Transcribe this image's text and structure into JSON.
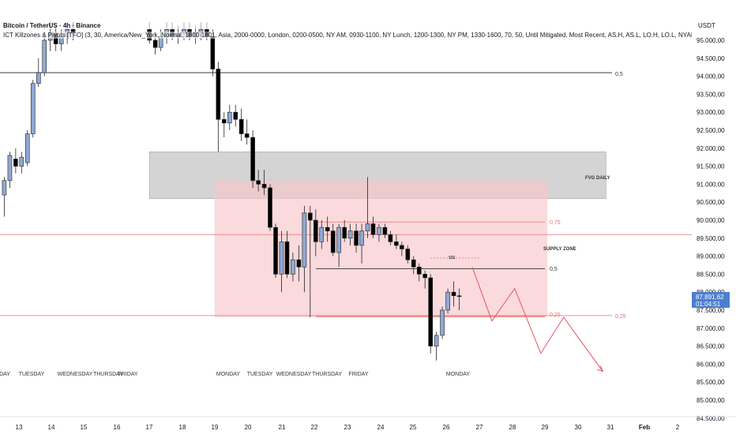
{
  "header": {
    "symbol_title": "Bitcoin / TetherUS · 4h · Binance",
    "indicator_legend": "ICT Killzones & Pivots [TFO] (3, 30, America/New_York, Normal, 1800-1801, Asia, 2000-0000, London, 0200-0500, NY AM, 0930-1100, NY Lunch, 1200-1300, NY PM, 1330-1600, 70, 50, Until Mitigated, Most Recent, AS.H, AS.L, LO.H, LO.L, NYAM.H, NYAM.L, NYL.H, N",
    "indicator_legend_2": "ICT Killzones & Pivots [TFO] (3, 30, America/New_York, Normal, 1800-1801, Asia, 2000-0000, London, 0200-0500, NY AM, 0930-1100, NY Lunch, 1200-1300, NY PM, 1330-1600, 70, 50, Until Mitigated, Most Recent, AS.H, AS.L, LO.H, LO.L, NYAM.H, NYAM.L, NYL.H, N"
  },
  "price_axis": {
    "currency": "USDT",
    "labels": [
      "95.000,00",
      "94.500,00",
      "94.000,00",
      "93.500,00",
      "93.000,00",
      "92.500,00",
      "92.000,00",
      "91.500,00",
      "91.000,00",
      "90.500,00",
      "90.000,00",
      "89.500,00",
      "89.000,00",
      "88.500,00",
      "88.000,00",
      "87.500,00",
      "87.000,00",
      "86.500,00",
      "86.000,00",
      "85.500,00",
      "85.000,00",
      "84.500,00"
    ],
    "current_price": "87.891,62",
    "countdown": "01:04:51"
  },
  "time_axis": {
    "labels": [
      "13",
      "14",
      "15",
      "16",
      "17",
      "18",
      "19",
      "20",
      "21",
      "22",
      "23",
      "24",
      "25",
      "26",
      "27",
      "28",
      "29",
      "30",
      "31",
      "Feb",
      "2"
    ]
  },
  "weekday_labels": [
    "DAY",
    "TUESDAY",
    "WEDNESDAY",
    "THURSDAY",
    "FRIDAY",
    "MONDAY",
    "TUESDAY",
    "WEDNESDAY",
    "THURSDAY",
    "FRIDAY",
    "MONDAY"
  ],
  "annotations": {
    "fvg_label": "FVG DAILY",
    "supply_label": "SUPPLY ZONE",
    "level_top_label": "0,5",
    "fib_075": "0,75",
    "fib_05": "0,5",
    "fib_025": "0,25",
    "fib_025_right": "0,25",
    "dollar_marker": "$$$"
  },
  "colors": {
    "bull": "#8fa9d6",
    "bear": "#000000",
    "fvg": "#b8b8b8",
    "supply": "#f7c6c9",
    "red_line": "#e57373",
    "projection": "#e45565",
    "price_tag": "#4d7fcf"
  },
  "chart_data": {
    "type": "candlestick",
    "title": "Bitcoin / TetherUS · 4h · Binance",
    "x_unit": "date (January, 4h candles)",
    "y_unit": "USDT",
    "ylim": [
      84500,
      95500
    ],
    "grid": false,
    "candles": [
      {
        "d": 12.55,
        "o": 90700,
        "h": 91200,
        "l": 90100,
        "c": 91100
      },
      {
        "d": 12.72,
        "o": 91100,
        "h": 91900,
        "l": 90900,
        "c": 91800
      },
      {
        "d": 12.9,
        "o": 91700,
        "h": 92000,
        "l": 91300,
        "c": 91500
      },
      {
        "d": 13.08,
        "o": 91500,
        "h": 91900,
        "l": 91300,
        "c": 91750
      },
      {
        "d": 13.26,
        "o": 91600,
        "h": 92500,
        "l": 91500,
        "c": 92400
      },
      {
        "d": 13.43,
        "o": 92400,
        "h": 93900,
        "l": 92300,
        "c": 93800
      },
      {
        "d": 13.6,
        "o": 93800,
        "h": 94500,
        "l": 93700,
        "c": 94100
      },
      {
        "d": 13.78,
        "o": 94100,
        "h": 95200,
        "l": 94000,
        "c": 95000
      },
      {
        "d": 13.96,
        "o": 95000,
        "h": 95500,
        "l": 94700,
        "c": 95200
      },
      {
        "d": 14.13,
        "o": 95200,
        "h": 95400,
        "l": 94700,
        "c": 94900
      },
      {
        "d": 14.3,
        "o": 94900,
        "h": 95300,
        "l": 94700,
        "c": 95100
      },
      {
        "d": 14.48,
        "o": 95100,
        "h": 95500,
        "l": 94900,
        "c": 95300
      },
      {
        "d": 14.66,
        "o": 95300,
        "h": 95500,
        "l": 95000,
        "c": 95200
      },
      {
        "d": 17.0,
        "o": 95300,
        "h": 95500,
        "l": 94900,
        "c": 95000
      },
      {
        "d": 17.18,
        "o": 95000,
        "h": 95200,
        "l": 94600,
        "c": 94800
      },
      {
        "d": 17.35,
        "o": 94800,
        "h": 95300,
        "l": 94700,
        "c": 95100
      },
      {
        "d": 17.53,
        "o": 95100,
        "h": 95500,
        "l": 94900,
        "c": 95300
      },
      {
        "d": 17.7,
        "o": 95300,
        "h": 95500,
        "l": 95000,
        "c": 95100
      },
      {
        "d": 17.88,
        "o": 95100,
        "h": 95400,
        "l": 94900,
        "c": 95200
      },
      {
        "d": 18.06,
        "o": 95200,
        "h": 95500,
        "l": 95000,
        "c": 95300
      },
      {
        "d": 18.23,
        "o": 95300,
        "h": 95500,
        "l": 95000,
        "c": 95100
      },
      {
        "d": 18.41,
        "o": 95100,
        "h": 95400,
        "l": 94900,
        "c": 95200
      },
      {
        "d": 18.58,
        "o": 95200,
        "h": 95500,
        "l": 95000,
        "c": 95300
      },
      {
        "d": 18.76,
        "o": 95300,
        "h": 95500,
        "l": 95000,
        "c": 95100
      },
      {
        "d": 18.94,
        "o": 95100,
        "h": 95300,
        "l": 94000,
        "c": 94200
      },
      {
        "d": 19.11,
        "o": 94200,
        "h": 94400,
        "l": 91900,
        "c": 92800
      },
      {
        "d": 19.29,
        "o": 92800,
        "h": 93000,
        "l": 92300,
        "c": 92700
      },
      {
        "d": 19.46,
        "o": 92700,
        "h": 93200,
        "l": 92500,
        "c": 93000
      },
      {
        "d": 19.64,
        "o": 93000,
        "h": 93200,
        "l": 92600,
        "c": 92800
      },
      {
        "d": 19.82,
        "o": 92800,
        "h": 93100,
        "l": 92200,
        "c": 92400
      },
      {
        "d": 19.99,
        "o": 92400,
        "h": 92800,
        "l": 92100,
        "c": 92300
      },
      {
        "d": 20.17,
        "o": 92300,
        "h": 92500,
        "l": 90900,
        "c": 91100
      },
      {
        "d": 20.34,
        "o": 91100,
        "h": 91400,
        "l": 90800,
        "c": 91000
      },
      {
        "d": 20.52,
        "o": 91000,
        "h": 91400,
        "l": 90700,
        "c": 90900
      },
      {
        "d": 20.7,
        "o": 90900,
        "h": 91000,
        "l": 89700,
        "c": 89800
      },
      {
        "d": 20.87,
        "o": 89800,
        "h": 89900,
        "l": 88400,
        "c": 88500
      },
      {
        "d": 21.05,
        "o": 88500,
        "h": 89700,
        "l": 88000,
        "c": 89400
      },
      {
        "d": 21.22,
        "o": 89400,
        "h": 89700,
        "l": 88400,
        "c": 88500
      },
      {
        "d": 21.4,
        "o": 88500,
        "h": 89100,
        "l": 88300,
        "c": 88900
      },
      {
        "d": 21.58,
        "o": 88900,
        "h": 89300,
        "l": 88300,
        "c": 88700
      },
      {
        "d": 21.75,
        "o": 88700,
        "h": 90400,
        "l": 88000,
        "c": 90200
      },
      {
        "d": 21.93,
        "o": 90200,
        "h": 90400,
        "l": 87300,
        "c": 90000
      },
      {
        "d": 22.1,
        "o": 90000,
        "h": 90300,
        "l": 89000,
        "c": 89400
      },
      {
        "d": 22.28,
        "o": 89400,
        "h": 90000,
        "l": 89200,
        "c": 89800
      },
      {
        "d": 22.46,
        "o": 89800,
        "h": 90100,
        "l": 89400,
        "c": 89700
      },
      {
        "d": 22.63,
        "o": 89700,
        "h": 89900,
        "l": 89000,
        "c": 89100
      },
      {
        "d": 22.81,
        "o": 89100,
        "h": 89900,
        "l": 88700,
        "c": 89800
      },
      {
        "d": 22.98,
        "o": 89800,
        "h": 90000,
        "l": 89400,
        "c": 89500
      },
      {
        "d": 23.16,
        "o": 89500,
        "h": 89900,
        "l": 89300,
        "c": 89700
      },
      {
        "d": 23.34,
        "o": 89700,
        "h": 89900,
        "l": 89100,
        "c": 89300
      },
      {
        "d": 23.51,
        "o": 89300,
        "h": 89900,
        "l": 88800,
        "c": 89700
      },
      {
        "d": 23.69,
        "o": 89700,
        "h": 91200,
        "l": 89500,
        "c": 89900
      },
      {
        "d": 23.86,
        "o": 89900,
        "h": 90100,
        "l": 89500,
        "c": 89600
      },
      {
        "d": 24.04,
        "o": 89600,
        "h": 89900,
        "l": 89400,
        "c": 89800
      },
      {
        "d": 24.22,
        "o": 89800,
        "h": 89900,
        "l": 89500,
        "c": 89600
      },
      {
        "d": 24.39,
        "o": 89600,
        "h": 89700,
        "l": 89300,
        "c": 89400
      },
      {
        "d": 24.57,
        "o": 89400,
        "h": 89600,
        "l": 89200,
        "c": 89300
      },
      {
        "d": 24.74,
        "o": 89300,
        "h": 89400,
        "l": 89000,
        "c": 89200
      },
      {
        "d": 24.92,
        "o": 89200,
        "h": 89300,
        "l": 88800,
        "c": 88900
      },
      {
        "d": 25.1,
        "o": 88900,
        "h": 89000,
        "l": 88500,
        "c": 88700
      },
      {
        "d": 25.27,
        "o": 88700,
        "h": 88800,
        "l": 88300,
        "c": 88500
      },
      {
        "d": 25.45,
        "o": 88500,
        "h": 88600,
        "l": 88100,
        "c": 88400
      },
      {
        "d": 25.62,
        "o": 88400,
        "h": 88500,
        "l": 86300,
        "c": 86500
      },
      {
        "d": 25.8,
        "o": 86500,
        "h": 86900,
        "l": 86100,
        "c": 86800
      },
      {
        "d": 25.98,
        "o": 86800,
        "h": 87600,
        "l": 86700,
        "c": 87500
      },
      {
        "d": 26.15,
        "o": 87500,
        "h": 88100,
        "l": 87400,
        "c": 88000
      },
      {
        "d": 26.33,
        "o": 88000,
        "h": 88300,
        "l": 87600,
        "c": 87900
      },
      {
        "d": 26.5,
        "o": 87900,
        "h": 88100,
        "l": 87500,
        "c": 87891.62
      }
    ],
    "zones": [
      {
        "name": "FVG DAILY",
        "from_day": 17.0,
        "to_day": 31.0,
        "top": 91900,
        "bottom": 90600
      },
      {
        "name": "SUPPLY ZONE",
        "from_day": 19.0,
        "to_day": 29.2,
        "top": 91100,
        "bottom": 87300
      }
    ],
    "levels": [
      {
        "label": "0,5",
        "price": 94100
      },
      {
        "label": "",
        "price": 89600
      },
      {
        "label": "0,25",
        "price": 87350
      },
      {
        "label": "0,75",
        "price": 89950
      },
      {
        "label": "0,5",
        "price": 88650
      }
    ],
    "projection_path": [
      [
        26.9,
        88700
      ],
      [
        27.5,
        87200
      ],
      [
        28.2,
        88100
      ],
      [
        29.0,
        86300
      ],
      [
        29.7,
        87300
      ],
      [
        30.9,
        85800
      ]
    ]
  }
}
